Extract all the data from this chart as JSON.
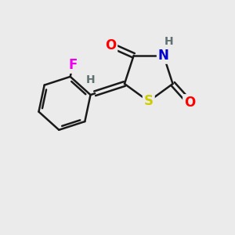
{
  "background_color": "#ebebeb",
  "bond_color": "#1a1a1a",
  "bond_width": 1.8,
  "atom_colors": {
    "O": "#ff0000",
    "N": "#0000cc",
    "S": "#cccc00",
    "F": "#ee00ee",
    "H": "#607070",
    "C": "#1a1a1a"
  },
  "figsize": [
    3.0,
    3.0
  ],
  "dpi": 100
}
